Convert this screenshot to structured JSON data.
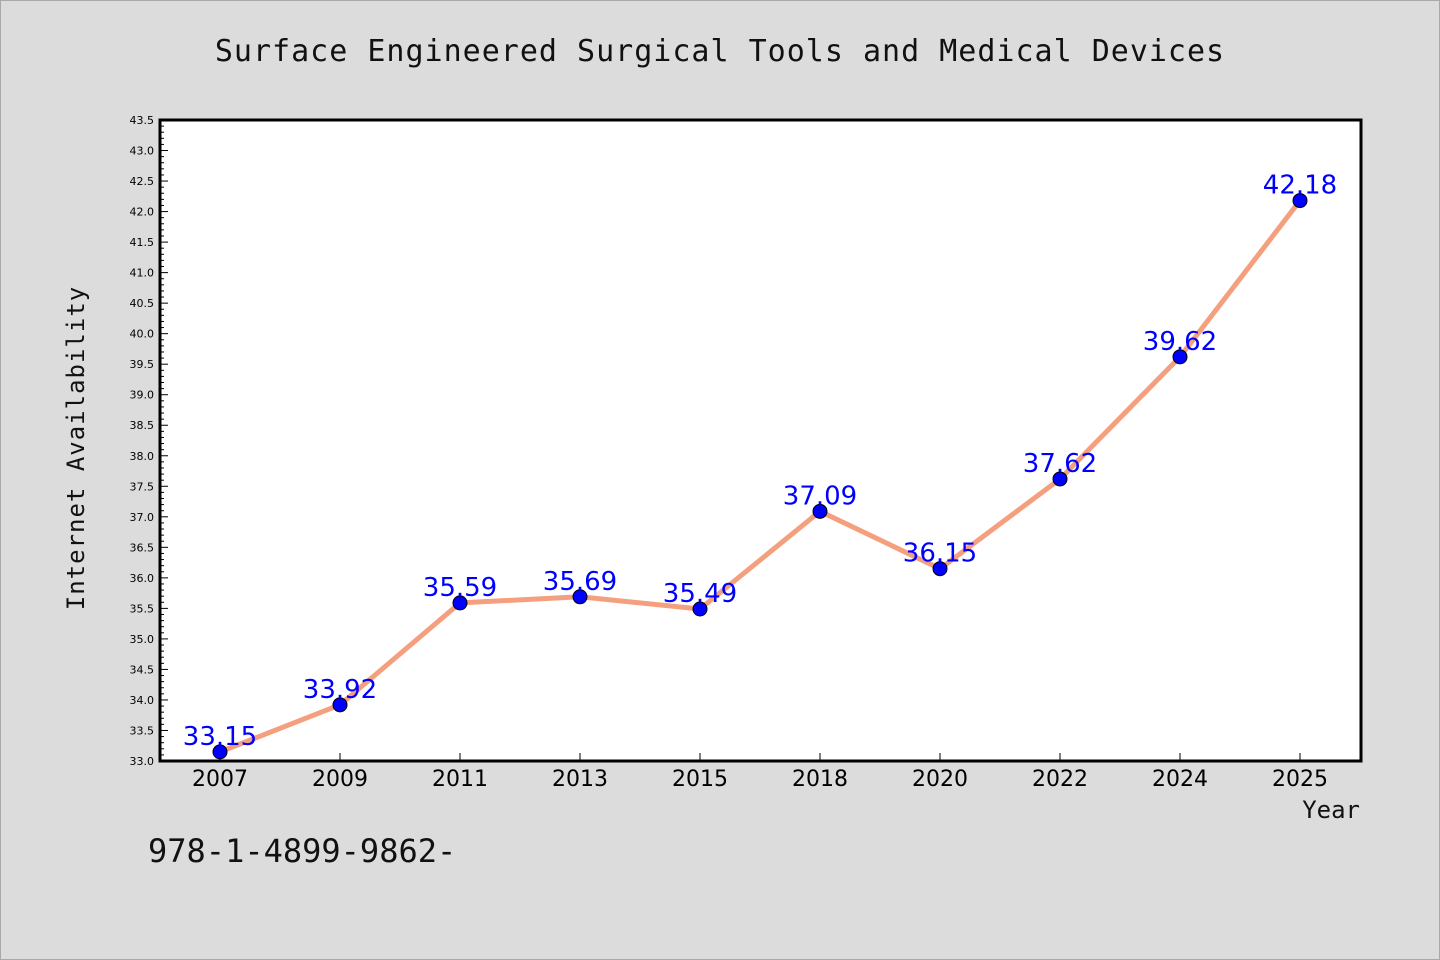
{
  "chart_data": {
    "type": "line",
    "title": "Surface Engineered Surgical Tools and Medical Devices",
    "xlabel": "Year",
    "ylabel": "Internet Availability",
    "categories": [
      "2007",
      "2009",
      "2011",
      "2013",
      "2015",
      "2018",
      "2020",
      "2022",
      "2024",
      "2025"
    ],
    "series": [
      {
        "values": [
          33.15,
          33.92,
          35.59,
          35.69,
          35.49,
          37.09,
          36.15,
          37.62,
          39.62,
          42.18
        ],
        "data_labels": [
          "33.15",
          "33.92",
          "35.59",
          "35.69",
          "35.49",
          "37.09",
          "36.15",
          "37.62",
          "39.62",
          "42.18"
        ],
        "line_color": "#f4a07f",
        "marker_color": "#0000ff"
      }
    ],
    "ylim": [
      33.0,
      43.5
    ],
    "yticks": [
      "33.0",
      "33.5",
      "34.0",
      "34.5",
      "35.0",
      "35.5",
      "36.0",
      "36.5",
      "37.0",
      "37.5",
      "38.0",
      "38.5",
      "39.0",
      "39.5",
      "40.0",
      "40.5",
      "41.0",
      "41.5",
      "42.0",
      "42.5",
      "43.0",
      "43.5"
    ],
    "grid": false,
    "legend": "none"
  },
  "footer_text": "978-1-4899-9862-",
  "colors": {
    "background": "#dcdcdc",
    "plot_area": "#ffffff",
    "data_label": "#0000ff"
  }
}
